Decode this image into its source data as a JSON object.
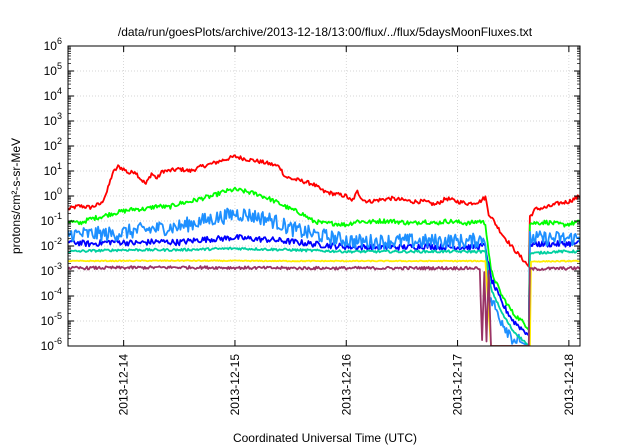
{
  "chart_data": {
    "type": "line",
    "title": "/data/run/goesPlots/archive/2013-12-18/13:00/flux/../flux/5daysMoonFluxes.txt",
    "xlabel": "Coordinated Universal Time (UTC)",
    "ylabel": "protons/cm²-s-sr-MeV",
    "x_unit": "days since 2013-12-13 00:00 UTC",
    "x_range": [
      1.0,
      5.6
    ],
    "x_ticks": [
      {
        "x": 1.5,
        "label": "2013-12-14"
      },
      {
        "x": 2.5,
        "label": "2013-12-15"
      },
      {
        "x": 3.5,
        "label": "2013-12-16"
      },
      {
        "x": 4.5,
        "label": "2013-12-17"
      },
      {
        "x": 5.5,
        "label": "2013-12-18"
      }
    ],
    "y_scale": "log",
    "y_range": [
      1e-06,
      1000000.0
    ],
    "y_ticks": [
      {
        "value": 1e-06,
        "base": "10",
        "exp": "-6"
      },
      {
        "value": 1e-05,
        "base": "10",
        "exp": "-5"
      },
      {
        "value": 0.0001,
        "base": "10",
        "exp": "-4"
      },
      {
        "value": 0.001,
        "base": "10",
        "exp": "-3"
      },
      {
        "value": 0.01,
        "base": "10",
        "exp": "-2"
      },
      {
        "value": 0.1,
        "base": "10",
        "exp": "-1"
      },
      {
        "value": 1,
        "base": "10",
        "exp": "0"
      },
      {
        "value": 10.0,
        "base": "10",
        "exp": "1"
      },
      {
        "value": 100.0,
        "base": "10",
        "exp": "2"
      },
      {
        "value": 1000.0,
        "base": "10",
        "exp": "3"
      },
      {
        "value": 10000.0,
        "base": "10",
        "exp": "4"
      },
      {
        "value": 100000.0,
        "base": "10",
        "exp": "5"
      },
      {
        "value": 1000000.0,
        "base": "10",
        "exp": "6"
      }
    ],
    "grid": true,
    "legend": "none",
    "series": [
      {
        "color": "#ff0000",
        "noise": 0.08,
        "points": [
          [
            1.0,
            0.3
          ],
          [
            1.1,
            0.4
          ],
          [
            1.2,
            0.35
          ],
          [
            1.3,
            0.5
          ],
          [
            1.35,
            1.5
          ],
          [
            1.4,
            8
          ],
          [
            1.45,
            15
          ],
          [
            1.5,
            12
          ],
          [
            1.55,
            8
          ],
          [
            1.6,
            10
          ],
          [
            1.65,
            5
          ],
          [
            1.7,
            3
          ],
          [
            1.75,
            8
          ],
          [
            1.8,
            5
          ],
          [
            1.85,
            10
          ],
          [
            1.9,
            10
          ],
          [
            2.0,
            12
          ],
          [
            2.1,
            10
          ],
          [
            2.2,
            15
          ],
          [
            2.3,
            20
          ],
          [
            2.4,
            28
          ],
          [
            2.5,
            38
          ],
          [
            2.6,
            30
          ],
          [
            2.7,
            25
          ],
          [
            2.8,
            20
          ],
          [
            2.9,
            15
          ],
          [
            2.95,
            6
          ],
          [
            3.0,
            5
          ],
          [
            3.1,
            4
          ],
          [
            3.2,
            3
          ],
          [
            3.3,
            1.5
          ],
          [
            3.4,
            1.2
          ],
          [
            3.5,
            1.0
          ],
          [
            3.55,
            0.6
          ],
          [
            3.6,
            1.5
          ],
          [
            3.65,
            0.7
          ],
          [
            3.7,
            0.6
          ],
          [
            3.8,
            0.7
          ],
          [
            3.9,
            0.8
          ],
          [
            4.0,
            0.7
          ],
          [
            4.1,
            0.6
          ],
          [
            4.2,
            0.6
          ],
          [
            4.3,
            0.45
          ],
          [
            4.4,
            0.8
          ],
          [
            4.5,
            0.6
          ],
          [
            4.6,
            0.5
          ],
          [
            4.7,
            0.6
          ],
          [
            4.75,
            0.9
          ],
          [
            4.78,
            0.2
          ],
          [
            4.8,
            0.15
          ],
          [
            4.9,
            0.03
          ],
          [
            5.0,
            0.008
          ],
          [
            5.1,
            0.0025
          ],
          [
            5.14,
            0.0015
          ],
          [
            5.15,
            0.15
          ],
          [
            5.2,
            0.3
          ],
          [
            5.3,
            0.35
          ],
          [
            5.4,
            0.5
          ],
          [
            5.5,
            0.6
          ],
          [
            5.6,
            1.0
          ]
        ]
      },
      {
        "color": "#00ff00",
        "noise": 0.09,
        "points": [
          [
            1.0,
            0.1
          ],
          [
            1.1,
            0.08
          ],
          [
            1.2,
            0.12
          ],
          [
            1.3,
            0.15
          ],
          [
            1.4,
            0.2
          ],
          [
            1.5,
            0.25
          ],
          [
            1.6,
            0.3
          ],
          [
            1.7,
            0.3
          ],
          [
            1.8,
            0.4
          ],
          [
            1.9,
            0.35
          ],
          [
            2.0,
            0.5
          ],
          [
            2.1,
            0.6
          ],
          [
            2.2,
            0.8
          ],
          [
            2.3,
            1.0
          ],
          [
            2.4,
            1.5
          ],
          [
            2.5,
            1.8
          ],
          [
            2.6,
            1.5
          ],
          [
            2.7,
            1.2
          ],
          [
            2.8,
            0.8
          ],
          [
            2.9,
            0.5
          ],
          [
            3.0,
            0.3
          ],
          [
            3.1,
            0.2
          ],
          [
            3.2,
            0.1
          ],
          [
            3.3,
            0.08
          ],
          [
            3.4,
            0.08
          ],
          [
            3.5,
            0.07
          ],
          [
            3.6,
            0.1
          ],
          [
            3.7,
            0.09
          ],
          [
            3.8,
            0.1
          ],
          [
            3.9,
            0.1
          ],
          [
            4.0,
            0.09
          ],
          [
            4.1,
            0.08
          ],
          [
            4.2,
            0.1
          ],
          [
            4.3,
            0.08
          ],
          [
            4.4,
            0.1
          ],
          [
            4.5,
            0.09
          ],
          [
            4.6,
            0.08
          ],
          [
            4.7,
            0.1
          ],
          [
            4.75,
            0.08
          ],
          [
            4.8,
            0.001
          ],
          [
            4.9,
            0.0001
          ],
          [
            5.0,
            2e-05
          ],
          [
            5.1,
            8e-06
          ],
          [
            5.14,
            5e-06
          ],
          [
            5.15,
            0.08
          ],
          [
            5.3,
            0.09
          ],
          [
            5.45,
            0.07
          ],
          [
            5.6,
            0.09
          ]
        ]
      },
      {
        "color": "#0000ff",
        "noise": 0.12,
        "points": [
          [
            1.0,
            0.015
          ],
          [
            1.2,
            0.012
          ],
          [
            1.4,
            0.015
          ],
          [
            1.6,
            0.013
          ],
          [
            1.8,
            0.015
          ],
          [
            2.0,
            0.014
          ],
          [
            2.2,
            0.018
          ],
          [
            2.4,
            0.02
          ],
          [
            2.5,
            0.022
          ],
          [
            2.6,
            0.02
          ],
          [
            2.8,
            0.018
          ],
          [
            3.0,
            0.015
          ],
          [
            3.2,
            0.012
          ],
          [
            3.4,
            0.01
          ],
          [
            3.6,
            0.009
          ],
          [
            3.8,
            0.009
          ],
          [
            4.0,
            0.009
          ],
          [
            4.2,
            0.01
          ],
          [
            4.4,
            0.009
          ],
          [
            4.6,
            0.009
          ],
          [
            4.75,
            0.01
          ],
          [
            4.8,
            0.0005
          ],
          [
            4.9,
            5e-05
          ],
          [
            5.0,
            1e-05
          ],
          [
            5.1,
            4e-06
          ],
          [
            5.14,
            3e-06
          ],
          [
            5.15,
            0.012
          ],
          [
            5.4,
            0.012
          ],
          [
            5.6,
            0.013
          ]
        ]
      },
      {
        "color": "#1e90ff",
        "noise": 0.3,
        "points": [
          [
            1.0,
            0.03
          ],
          [
            1.2,
            0.03
          ],
          [
            1.4,
            0.03
          ],
          [
            1.6,
            0.04
          ],
          [
            1.8,
            0.05
          ],
          [
            2.0,
            0.06
          ],
          [
            2.2,
            0.1
          ],
          [
            2.4,
            0.15
          ],
          [
            2.5,
            0.2
          ],
          [
            2.6,
            0.18
          ],
          [
            2.8,
            0.12
          ],
          [
            2.9,
            0.08
          ],
          [
            3.0,
            0.05
          ],
          [
            3.2,
            0.03
          ],
          [
            3.4,
            0.02
          ],
          [
            3.6,
            0.015
          ],
          [
            3.8,
            0.015
          ],
          [
            4.0,
            0.016
          ],
          [
            4.2,
            0.015
          ],
          [
            4.4,
            0.016
          ],
          [
            4.6,
            0.015
          ],
          [
            4.75,
            0.02
          ],
          [
            4.78,
            0.0001
          ],
          [
            4.9,
            1e-05
          ],
          [
            5.0,
            2e-06
          ],
          [
            5.14,
            1e-06
          ],
          [
            5.15,
            0.02
          ],
          [
            5.4,
            0.02
          ],
          [
            5.6,
            0.02
          ]
        ]
      },
      {
        "color": "#00d0a0",
        "noise": 0.05,
        "points": [
          [
            1.0,
            0.006
          ],
          [
            1.5,
            0.007
          ],
          [
            2.0,
            0.007
          ],
          [
            2.5,
            0.008
          ],
          [
            3.0,
            0.007
          ],
          [
            3.5,
            0.006
          ],
          [
            4.0,
            0.006
          ],
          [
            4.5,
            0.006
          ],
          [
            4.75,
            0.006
          ],
          [
            4.8,
            0.0002
          ],
          [
            4.9,
            2e-05
          ],
          [
            5.0,
            4e-06
          ],
          [
            5.1,
            1.5e-06
          ],
          [
            5.14,
            1e-06
          ],
          [
            5.15,
            0.005
          ],
          [
            5.4,
            0.006
          ],
          [
            5.6,
            0.006
          ]
        ]
      },
      {
        "color": "#ffee00",
        "noise": 0.02,
        "points": [
          [
            1.0,
            0.0025
          ],
          [
            2.0,
            0.0026
          ],
          [
            3.0,
            0.0025
          ],
          [
            4.0,
            0.0025
          ],
          [
            4.72,
            0.0025
          ],
          [
            4.75,
            0.0025
          ],
          [
            4.8,
            1e-06
          ],
          [
            5.15,
            1e-06
          ],
          [
            5.15,
            0.0024
          ],
          [
            5.6,
            0.0025
          ]
        ]
      },
      {
        "color": "#993366",
        "noise": 0.06,
        "points": [
          [
            1.0,
            0.0013
          ],
          [
            2.0,
            0.0014
          ],
          [
            3.0,
            0.0013
          ],
          [
            4.0,
            0.0013
          ],
          [
            4.7,
            0.0013
          ],
          [
            4.72,
            1.5e-06
          ],
          [
            4.74,
            0.001
          ],
          [
            4.76,
            1.5e-06
          ],
          [
            4.78,
            0.0011
          ],
          [
            4.8,
            1e-06
          ],
          [
            5.14,
            1e-06
          ],
          [
            5.15,
            0.0012
          ],
          [
            5.6,
            0.0013
          ]
        ]
      }
    ]
  }
}
